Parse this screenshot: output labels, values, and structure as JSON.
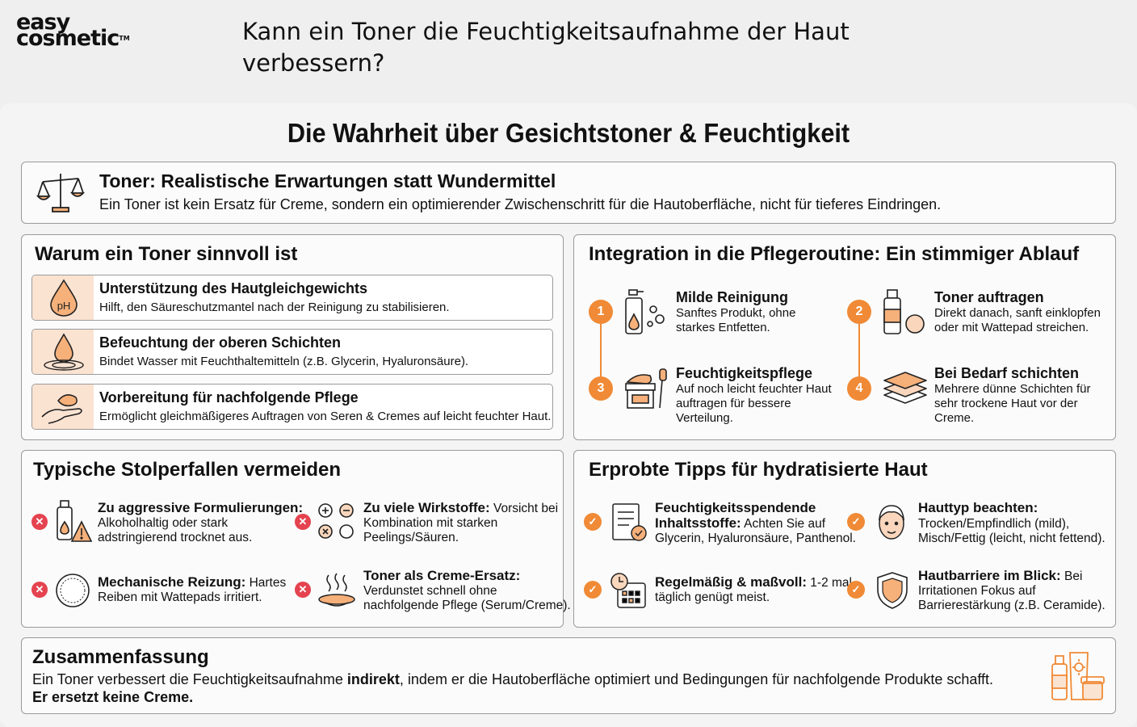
{
  "logo": {
    "line1": "easy",
    "line2": "cosmetic",
    "tm": "TM"
  },
  "question": "Kann ein Toner die Feuchtigkeitsaufnahme der Haut verbessern?",
  "main_title": "Die Wahrheit über Gesichtstoner & Feuchtigkeit",
  "banner": {
    "title": "Toner: Realistische Erwartungen statt Wundermittel",
    "text": "Ein Toner ist kein Ersatz für Creme, sondern ein optimierender Zwischenschritt für die Hautoberfläche, nicht für tieferes Eindringen."
  },
  "why": {
    "title": "Warum ein Toner sinnvoll ist",
    "items": [
      {
        "title": "Unterstützung des Hautgleichgewichts",
        "text": "Hilft, den Säureschutzmantel nach der Reinigung zu stabilisieren.",
        "icon": "ph-drop-icon",
        "icon_text": "pH"
      },
      {
        "title": "Befeuchtung der oberen Schichten",
        "text": "Bindet Wasser mit Feuchthaltemitteln (z.B. Glycerin, Hyaluronsäure).",
        "icon": "water-drop-icon"
      },
      {
        "title": "Vorbereitung für nachfolgende Pflege",
        "text": "Ermöglicht gleichmäßigeres Auftragen von Seren & Cremes auf leicht feuchter Haut.",
        "icon": "hand-cream-icon"
      }
    ]
  },
  "routine": {
    "title": "Integration in die Pflegeroutine: Ein stimmiger Ablauf",
    "steps": [
      {
        "num": "1",
        "title": "Milde Reinigung",
        "l1": "Sanftes Produkt, ohne",
        "l2": "starkes Entfetten.",
        "l3": "",
        "icon": "cleanser-bottle-icon"
      },
      {
        "num": "2",
        "title": "Toner auftragen",
        "l1": "Direkt danach, sanft einklopfen",
        "l2": "oder mit Wattepad streichen.",
        "l3": "",
        "icon": "toner-bottle-icon"
      },
      {
        "num": "3",
        "title": "Feuchtigkeitspflege",
        "l1": "Auf noch leicht feuchter Haut",
        "l2": "auftragen für bessere",
        "l3": "Verteilung.",
        "icon": "cream-jar-icon"
      },
      {
        "num": "4",
        "title": "Bei Bedarf schichten",
        "l1": "Mehrere dünne Schichten für",
        "l2": "sehr trockene Haut vor der",
        "l3": "Creme.",
        "icon": "layers-icon"
      }
    ]
  },
  "pitfalls": {
    "title": "Typische Stolperfallen vermeiden",
    "items": [
      {
        "bold": "Zu aggressive Formulierungen:",
        "l1": "",
        "l2": "Alkoholhaltig oder stark",
        "l3": "adstringierend trocknet aus.",
        "icon": "warning-bottle-icon"
      },
      {
        "bold": "Zu viele Wirkstoffe:",
        "l1": " Vorsicht bei",
        "l2": "Kombination mit starken",
        "l3": "Peelings/Säuren.",
        "icon": "molecules-icon"
      },
      {
        "bold": "Mechanische Reizung:",
        "l1": " Hartes",
        "l2": "Reiben mit Wattepads irritiert.",
        "l3": "",
        "icon": "cotton-pad-icon"
      },
      {
        "bold": "Toner als Creme-Ersatz:",
        "l1": "",
        "l2": "Verdunstet schnell ohne",
        "l3": "nachfolgende Pflege (Serum/Creme).",
        "icon": "evaporation-icon"
      }
    ]
  },
  "tips": {
    "title": "Erprobte Tipps für hydratisierte Haut",
    "items": [
      {
        "bold": "Feuchtigkeitsspendende",
        "l1": "",
        "l2b": "Inhaltsstoffe:",
        "l2": " Achten Sie auf",
        "l3": "Glycerin, Hyaluronsäure, Panthenol.",
        "icon": "ingredient-list-icon"
      },
      {
        "bold": "Hauttyp beachten:",
        "l1": "",
        "l2b": "",
        "l2": "Trocken/Empfindlich (mild),",
        "l3": "Misch/Fettig (leicht, nicht fettend).",
        "icon": "face-icon"
      },
      {
        "bold": "Regelmäßig & maßvoll:",
        "l1": " 1-2 mal",
        "l2b": "",
        "l2": "täglich genügt meist.",
        "l3": "",
        "icon": "calendar-clock-icon"
      },
      {
        "bold": "Hautbarriere im Blick:",
        "l1": " Bei",
        "l2b": "",
        "l2": "Irritationen Fokus auf",
        "l3": "Barrierestärkung (z.B. Ceramide).",
        "icon": "shield-icon"
      }
    ]
  },
  "summary": {
    "title": "Zusammenfassung",
    "pre": "Ein Toner verbessert die Feuchtigkeitsaufnahme ",
    "bold": "indirekt",
    "post": ", indem er die Hautoberfläche optimiert und Bedingungen für nachfolgende Produkte schafft.",
    "line2": "Er ersetzt keine Creme.",
    "icon": "products-icon"
  },
  "colors": {
    "accent": "#f08a36",
    "accent_light": "#fbe3d2",
    "error": "#e4434f"
  }
}
